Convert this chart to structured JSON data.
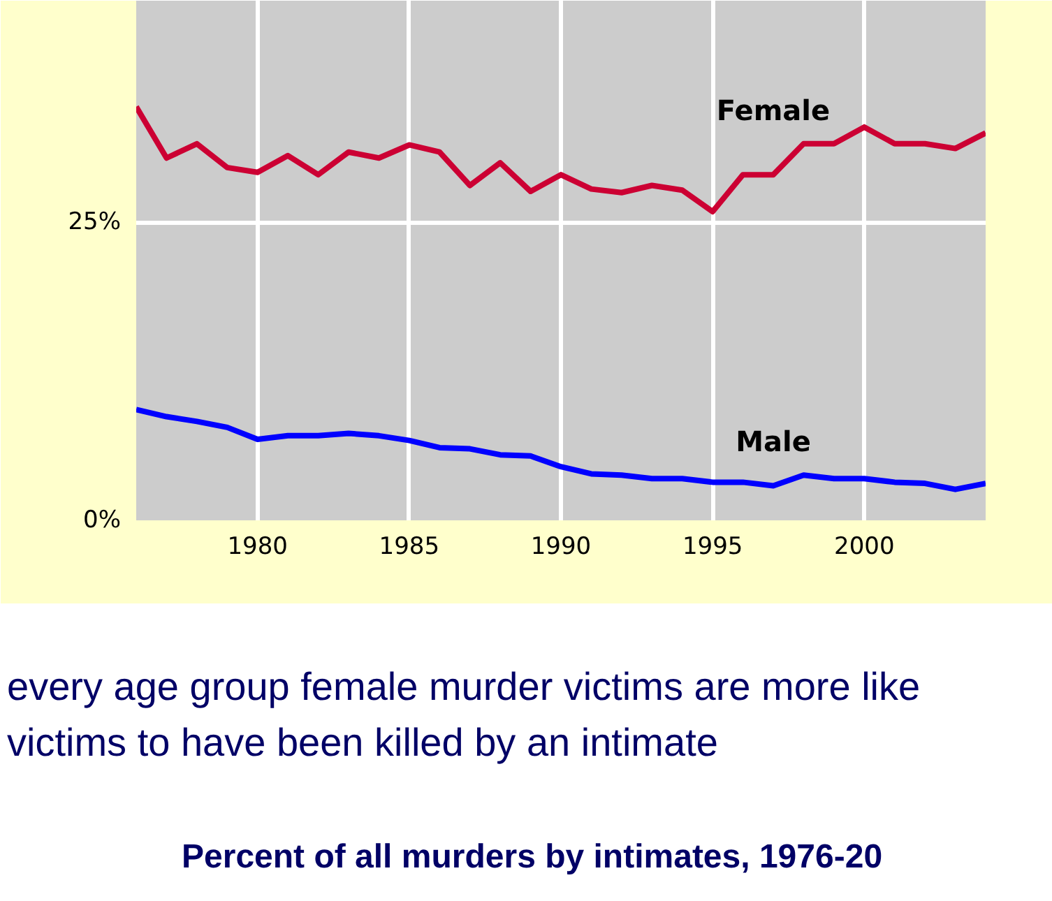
{
  "chart_data": {
    "type": "line",
    "x": [
      1976,
      1977,
      1978,
      1979,
      1980,
      1981,
      1982,
      1983,
      1984,
      1985,
      1986,
      1987,
      1988,
      1989,
      1990,
      1991,
      1992,
      1993,
      1994,
      1995,
      1996,
      1997,
      1998,
      1999,
      2000,
      2001,
      2002,
      2003,
      2004
    ],
    "series": [
      {
        "name": "Female",
        "color": "#cc0033",
        "values": [
          34.7,
          30.4,
          31.6,
          29.6,
          29.2,
          30.6,
          29.0,
          30.9,
          30.4,
          31.5,
          30.9,
          28.1,
          30.0,
          27.6,
          29.0,
          27.8,
          27.5,
          28.1,
          27.7,
          25.9,
          29.0,
          29.0,
          31.6,
          31.6,
          33.0,
          31.6,
          31.6,
          31.2,
          32.5
        ]
      },
      {
        "name": "Male",
        "color": "#0000ff",
        "values": [
          9.3,
          8.7,
          8.3,
          7.8,
          6.8,
          7.1,
          7.1,
          7.3,
          7.1,
          6.7,
          6.1,
          6.0,
          5.5,
          5.4,
          4.5,
          3.9,
          3.8,
          3.5,
          3.5,
          3.2,
          3.2,
          2.9,
          3.8,
          3.5,
          3.5,
          3.2,
          3.1,
          2.6,
          3.1
        ]
      }
    ],
    "xlim": [
      1976,
      2004
    ],
    "xticks": [
      1980,
      1985,
      1990,
      1995,
      2000
    ],
    "ylim": [
      0,
      43.6
    ],
    "yticks": [
      {
        "value": 0,
        "label": "0%"
      },
      {
        "value": 25,
        "label": "25%"
      }
    ],
    "grid": true,
    "marker": "none",
    "line_style": "solid",
    "annotations": [
      "every age group female murder victims are more like",
      "victims to have been killed by an intimate",
      "Percent of all murders by intimates, 1976-20"
    ]
  }
}
